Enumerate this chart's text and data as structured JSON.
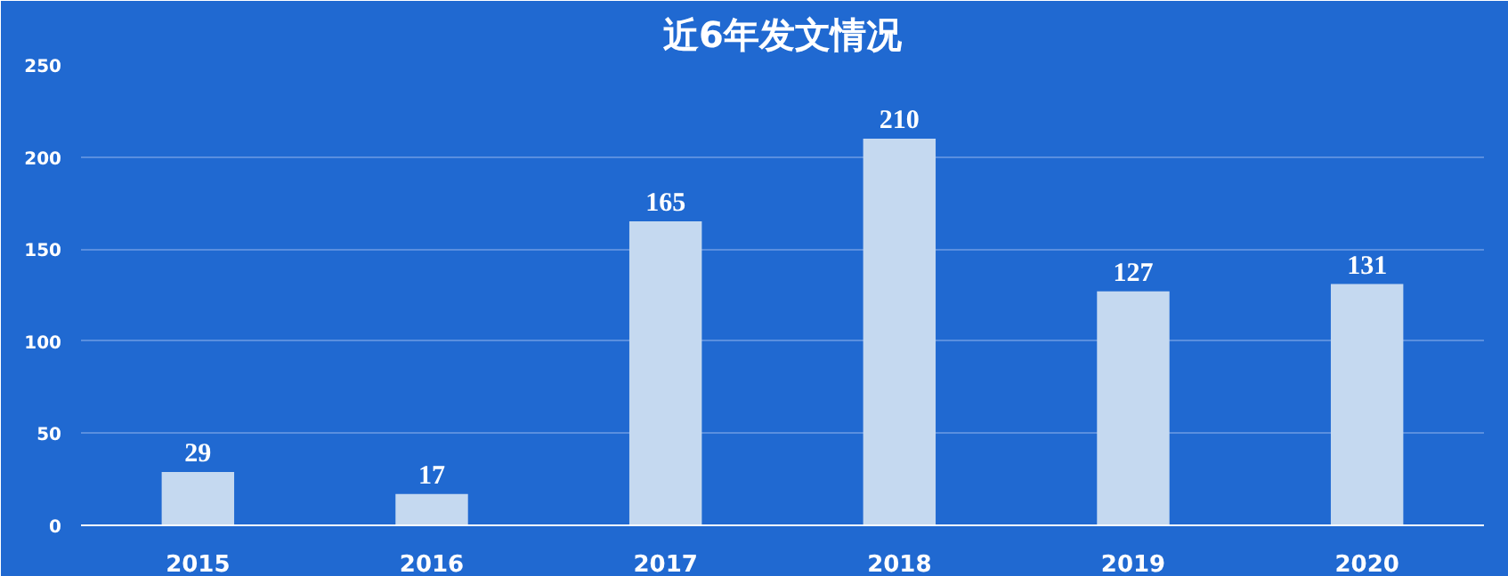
{
  "chart_data": {
    "type": "bar",
    "title": "近6年发文情况",
    "categories": [
      "2015",
      "2016",
      "2017",
      "2018",
      "2019",
      "2020"
    ],
    "values": [
      29,
      17,
      165,
      210,
      127,
      131
    ],
    "color": "#c5d9f0",
    "ylim": [
      0,
      250
    ],
    "yticks": [
      0,
      50,
      100,
      150,
      200,
      250
    ],
    "grid": "y",
    "data_labels": true
  }
}
